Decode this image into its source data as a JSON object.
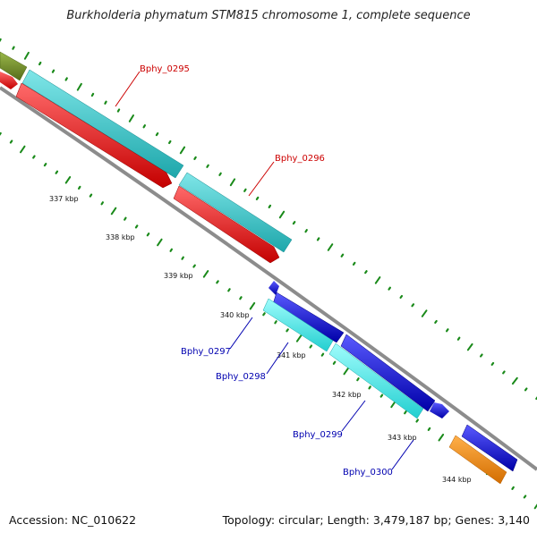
{
  "title": "Burkholderia phymatum STM815 chromosome 1, complete sequence",
  "footer": {
    "accession": "Accession: NC_010622",
    "summary": "Topology: circular; Length: 3,479,187 bp; Genes: 3,140"
  },
  "colors": {
    "backbone": "#8c8c8c",
    "tick": "#1a8a1a",
    "cyan": "#3cc8cc",
    "cyan_light": "#40f0f0",
    "red": "#ff1010",
    "blue": "#1010e8",
    "olive": "#6b8e23",
    "orange": "#ff8c00",
    "label_red": "#cc0000",
    "label_blue": "#0000b0"
  },
  "kbp_labels": [
    "337 kbp",
    "338 kbp",
    "339 kbp",
    "340 kbp",
    "341 kbp",
    "342 kbp",
    "343 kbp",
    "344 kbp"
  ],
  "gene_labels": [
    {
      "text": "Bphy_0295",
      "group": "red"
    },
    {
      "text": "Bphy_0296",
      "group": "red"
    },
    {
      "text": "Bphy_0297",
      "group": "blue"
    },
    {
      "text": "Bphy_0298",
      "group": "blue"
    },
    {
      "text": "Bphy_0299",
      "group": "blue"
    },
    {
      "text": "Bphy_0300",
      "group": "blue"
    }
  ]
}
